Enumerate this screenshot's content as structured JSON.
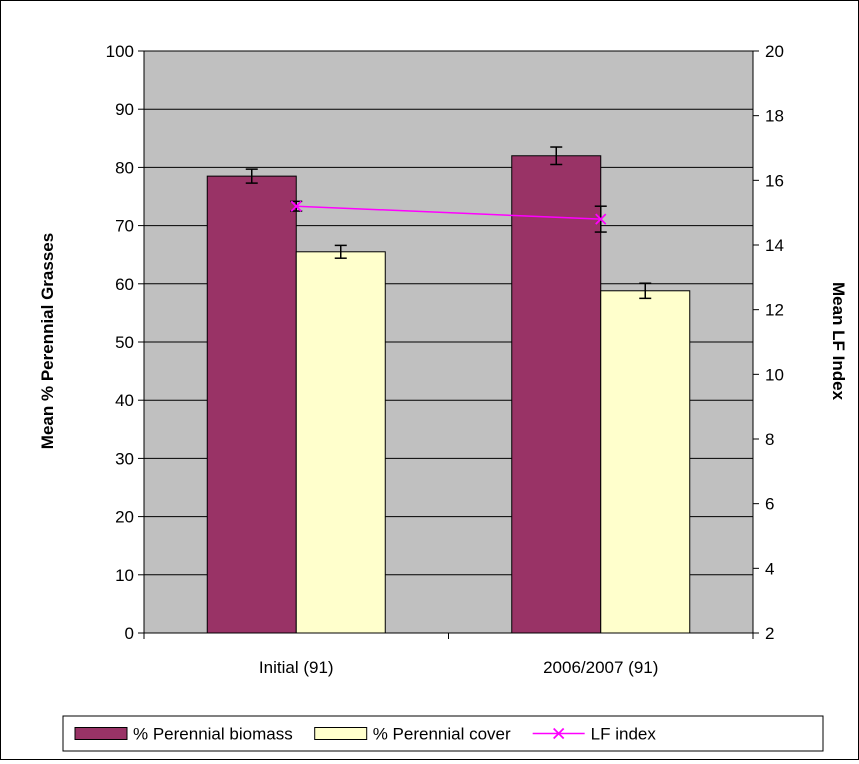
{
  "chart_data": {
    "type": "bar",
    "categories": [
      "Initial (91)",
      "2006/2007 (91)"
    ],
    "series": [
      {
        "name": "% Perennial biomass",
        "kind": "bar",
        "axis": "left",
        "color": "#993366",
        "values": [
          78.5,
          82.0
        ],
        "error": [
          1.2,
          1.5
        ]
      },
      {
        "name": "% Perennial cover",
        "kind": "bar",
        "axis": "left",
        "color": "#FFFFCC",
        "values": [
          65.5,
          58.8
        ],
        "error": [
          1.1,
          1.3
        ]
      },
      {
        "name": "LF index",
        "kind": "line",
        "axis": "right",
        "color": "#FF00FF",
        "values": [
          15.2,
          14.8
        ],
        "error": [
          0.15,
          0.4
        ]
      }
    ],
    "ylabel": "Mean % Perennial Grasses",
    "y2label": "Mean LF Index",
    "ylim": [
      0,
      100
    ],
    "y2lim": [
      2,
      20
    ],
    "yticks": [
      "0",
      "10",
      "20",
      "30",
      "40",
      "50",
      "60",
      "70",
      "80",
      "90",
      "100"
    ],
    "y2ticks": [
      "2",
      "4",
      "6",
      "8",
      "10",
      "12",
      "14",
      "16",
      "18",
      "20"
    ],
    "plot_background": "#C0C0C0",
    "grid": true,
    "legend_position": "bottom"
  }
}
